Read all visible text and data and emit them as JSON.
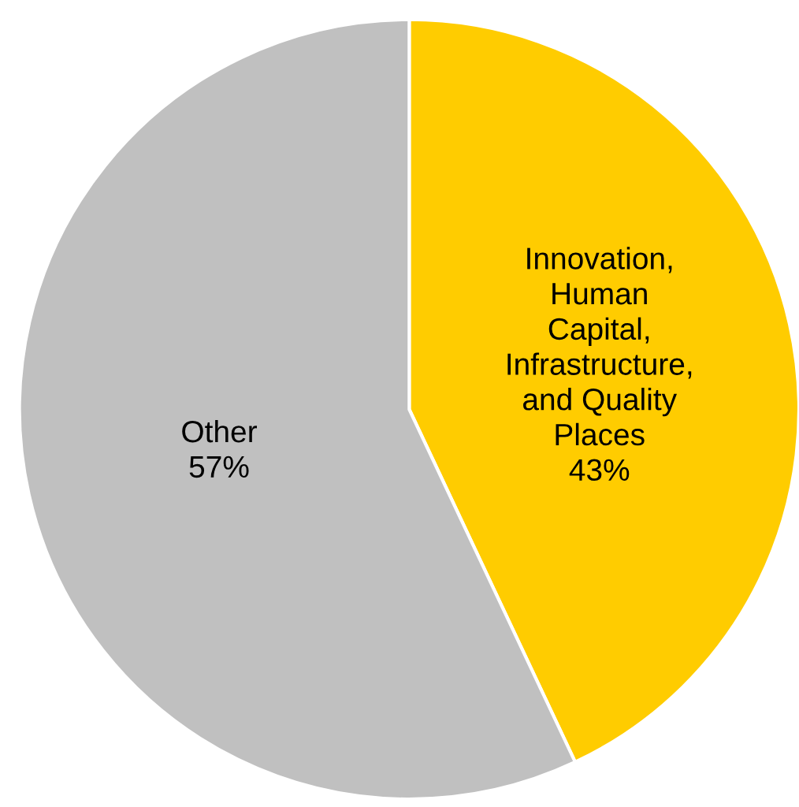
{
  "chart_data": {
    "type": "pie",
    "categories": [
      "Innovation,\nHuman\nCapital,\nInfrastructure,\nand Quality\nPlaces",
      "Other"
    ],
    "values": [
      43,
      57
    ],
    "colors": [
      "#ffcc00",
      "#c0c0c0"
    ],
    "value_labels": [
      "43%",
      "57%"
    ],
    "legend": false
  }
}
